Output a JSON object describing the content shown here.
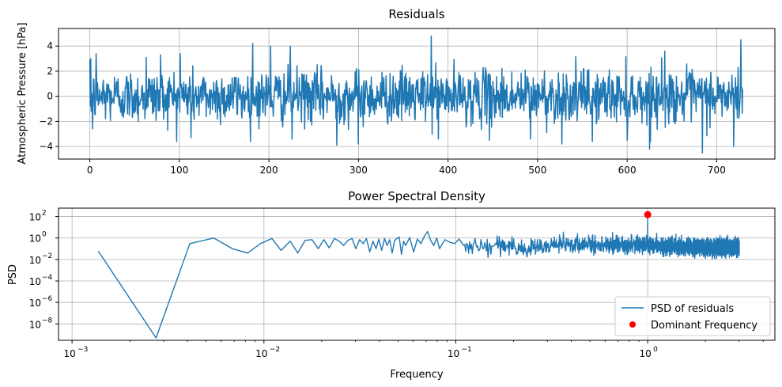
{
  "colors": {
    "series": "#1f77b4",
    "marker": "#ff0000",
    "grid": "#b0b0b0",
    "axes": "#000000"
  },
  "chart_data": [
    {
      "type": "line",
      "title": "Residuals",
      "xlabel": "",
      "ylabel": "Atmospheric Pressure [hPa]",
      "xlim": [
        -35,
        765
      ],
      "ylim": [
        -5,
        5.4
      ],
      "xticks": [
        0,
        100,
        200,
        300,
        400,
        500,
        600,
        700
      ],
      "xtick_labels": [
        "0",
        "100",
        "200",
        "300",
        "400",
        "500",
        "600",
        "700"
      ],
      "yticks": [
        -4,
        -2,
        0,
        2,
        4
      ],
      "ytick_labels": [
        "−4",
        "−2",
        "0",
        "2",
        "4"
      ],
      "grid": true,
      "series": [
        {
          "x_range": [
            0,
            729
          ],
          "n_points": 1460,
          "std": 1.05,
          "notable_points": [
            {
              "x": 1,
              "y": 3.0
            },
            {
              "x": 7,
              "y": 3.4
            },
            {
              "x": 3,
              "y": -2.6
            },
            {
              "x": 63,
              "y": 3.1
            },
            {
              "x": 79,
              "y": 3.3
            },
            {
              "x": 101,
              "y": 3.4
            },
            {
              "x": 113,
              "y": -3.3
            },
            {
              "x": 182,
              "y": 4.2
            },
            {
              "x": 202,
              "y": 4.0
            },
            {
              "x": 224,
              "y": 4.0
            },
            {
              "x": 226,
              "y": -3.4
            },
            {
              "x": 276,
              "y": -3.9
            },
            {
              "x": 300,
              "y": -3.8
            },
            {
              "x": 381,
              "y": 4.8
            },
            {
              "x": 389,
              "y": -3.4
            },
            {
              "x": 446,
              "y": -3.5
            },
            {
              "x": 492,
              "y": -3.4
            },
            {
              "x": 527,
              "y": -3.8
            },
            {
              "x": 561,
              "y": -3.6
            },
            {
              "x": 600,
              "y": -3.5
            },
            {
              "x": 625,
              "y": -4.2
            },
            {
              "x": 642,
              "y": 3.6
            },
            {
              "x": 684,
              "y": -4.5
            },
            {
              "x": 719,
              "y": -4.0
            },
            {
              "x": 727,
              "y": 4.5
            }
          ]
        }
      ]
    },
    {
      "type": "line",
      "title": "Power Spectral Density",
      "xlabel": "Frequency",
      "ylabel": "PSD",
      "xscale": "log",
      "yscale": "log",
      "xlim": [
        0.00085,
        4.6
      ],
      "ylim": [
        3e-10,
        600.0
      ],
      "xticks": [
        0.001,
        0.01,
        0.1,
        1
      ],
      "xtick_labels": [
        "10",
        "10",
        "10",
        "10"
      ],
      "xtick_exponents": [
        "−3",
        "−2",
        "−1",
        "0"
      ],
      "yticks": [
        1e-08,
        1e-06,
        0.0001,
        0.01,
        1,
        100
      ],
      "ytick_labels": [
        "10",
        "10",
        "10",
        "10",
        "10",
        "10"
      ],
      "ytick_exponents": [
        "−8",
        "−6",
        "−4",
        "−2",
        "0",
        "2"
      ],
      "grid": true,
      "legend": {
        "position": "lower-right",
        "entries": [
          "PSD of residuals",
          "Dominant Frequency"
        ]
      },
      "series": [
        {
          "name": "PSD of residuals",
          "x_range": [
            0.00137,
            3.0
          ],
          "x": [
            0.00137,
            0.00274,
            0.00411,
            0.00548,
            0.00685,
            0.00822,
            0.0096,
            0.011,
            0.0123,
            0.0137,
            0.015,
            0.0164,
            0.0178,
            0.0192,
            0.0205,
            0.0219,
            0.0233,
            0.0247,
            0.026,
            0.0274,
            0.0288,
            0.0301,
            0.0315,
            0.0329,
            0.0342,
            0.0356,
            0.037,
            0.0384,
            0.0397,
            0.0411,
            0.0425,
            0.0438,
            0.0452,
            0.0466,
            0.048,
            0.0493,
            0.0507,
            0.0521,
            0.0534,
            0.0548,
            0.0575,
            0.0603,
            0.063,
            0.0658,
            0.0685,
            0.0712,
            0.074,
            0.0767,
            0.0795,
            0.0822,
            0.0877,
            0.0932,
            0.0986,
            0.104,
            0.11
          ],
          "y": [
            0.06,
            5e-10,
            0.3,
            1.0,
            0.1,
            0.04,
            0.3,
            0.9,
            0.07,
            0.5,
            0.04,
            0.6,
            0.7,
            0.1,
            0.7,
            0.12,
            0.9,
            0.5,
            0.2,
            0.6,
            0.9,
            0.1,
            0.7,
            0.3,
            0.9,
            0.05,
            0.5,
            0.1,
            0.8,
            0.07,
            0.9,
            0.2,
            0.7,
            0.04,
            0.6,
            0.9,
            1.2,
            0.03,
            0.5,
            0.2,
            1.1,
            0.05,
            0.8,
            0.3,
            1.4,
            4.0,
            0.6,
            0.2,
            1.0,
            0.1,
            0.7,
            0.4,
            0.3,
            0.8,
            0.2
          ],
          "high_freq_start": 0.11,
          "high_freq_end": 3.0,
          "high_freq_level": 0.15,
          "spike": {
            "x": 1.0,
            "y": 150
          }
        },
        {
          "name": "Dominant Frequency",
          "marker": "circle",
          "x": [
            1.0
          ],
          "y": [
            150
          ]
        }
      ]
    }
  ]
}
